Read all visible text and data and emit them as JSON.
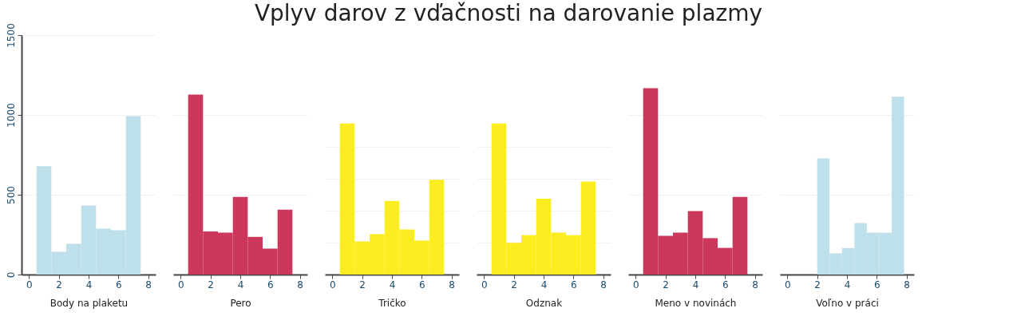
{
  "chart_data": [
    {
      "type": "other",
      "title": "Vplyv darov z vďačnosti na darovanie plazmy"
    },
    {
      "type": "histogram",
      "xlabel": "Body na plaketu",
      "bins": [
        0.5,
        1.5,
        2.5,
        3.5,
        4.5,
        5.5,
        6.5,
        7.5
      ],
      "values": [
        679,
        143,
        193,
        433,
        287,
        278,
        992
      ],
      "color": "#bde0ea",
      "xlim": [
        -0.5,
        8.5
      ],
      "xticks": [
        0,
        2,
        4,
        6,
        8
      ],
      "ylim": [
        0,
        1500
      ],
      "yticks": [
        0,
        500,
        1000,
        1500
      ],
      "grid": "y"
    },
    {
      "type": "histogram",
      "xlabel": "Pero",
      "bins": [
        0.5,
        1.5,
        2.5,
        3.5,
        4.5,
        5.5,
        6.5,
        7.5
      ],
      "values": [
        1128,
        270,
        262,
        486,
        236,
        162,
        406
      ],
      "color": "#cc375c",
      "xlim": [
        -0.5,
        8.5
      ],
      "xticks": [
        0,
        2,
        4,
        6,
        8
      ],
      "ylim": [
        0,
        1500
      ],
      "yticks": [
        {
          "value": 500,
          "label": null
        },
        {
          "value": 1000,
          "label": null
        }
      ],
      "grid": "y",
      "tick_labels": "x"
    },
    {
      "type": "histogram",
      "xlabel": "Tričko",
      "bins": [
        0.5,
        1.5,
        2.5,
        3.5,
        4.5,
        5.5,
        6.5,
        7.5
      ],
      "values": [
        946,
        208,
        253,
        461,
        282,
        213,
        594
      ],
      "color": "#fced21",
      "xlim": [
        -0.5,
        8.5
      ],
      "xticks": [
        0,
        2,
        4,
        6,
        8
      ],
      "ylim": [
        0,
        1500
      ],
      "yticks": [
        {
          "value": 200,
          "label": null
        },
        {
          "value": 400,
          "label": null
        },
        {
          "value": 600,
          "label": null
        },
        {
          "value": 800,
          "label": null
        }
      ],
      "grid": "y",
      "tick_labels": "x"
    },
    {
      "type": "histogram",
      "xlabel": "Odznak",
      "bins": [
        0.5,
        1.5,
        2.5,
        3.5,
        4.5,
        5.5,
        6.5,
        7.5
      ],
      "values": [
        946,
        199,
        247,
        475,
        262,
        247,
        583
      ],
      "color": "#fced21",
      "xlim": [
        -0.5,
        8.5
      ],
      "xticks": [
        0,
        2,
        4,
        6,
        8
      ],
      "ylim": [
        0,
        1500
      ],
      "yticks": [
        {
          "value": 200,
          "label": null
        },
        {
          "value": 400,
          "label": null
        },
        {
          "value": 600,
          "label": null
        },
        {
          "value": 800,
          "label": null
        }
      ],
      "grid": "y",
      "tick_labels": "x"
    },
    {
      "type": "histogram",
      "xlabel": "Meno v novinách",
      "bins": [
        0.5,
        1.5,
        2.5,
        3.5,
        4.5,
        5.5,
        6.5,
        7.5
      ],
      "values": [
        1168,
        242,
        262,
        398,
        228,
        167,
        486
      ],
      "color": "#cc375c",
      "xlim": [
        -0.5,
        8.5
      ],
      "xticks": [
        0,
        2,
        4,
        6,
        8
      ],
      "ylim": [
        0,
        1500
      ],
      "yticks": [
        {
          "value": 500,
          "label": null
        },
        {
          "value": 1000,
          "label": null
        }
      ],
      "grid": "y",
      "tick_labels": "x"
    },
    {
      "type": "histogram",
      "xlabel": "Voľno v práci",
      "bins": [
        2,
        2.83,
        3.67,
        4.5,
        5.33,
        6.17,
        7,
        7.83
      ],
      "values": [
        727,
        133,
        166,
        322,
        262,
        262,
        1114
      ],
      "color": "#bde0ea",
      "xlim": [
        -0.5,
        8.5
      ],
      "xticks": [
        0,
        2,
        4,
        6,
        8
      ],
      "ylim": [
        0,
        1500
      ],
      "yticks": [
        {
          "value": 500,
          "label": null
        },
        {
          "value": 1000,
          "label": null
        }
      ],
      "grid": "y",
      "tick_labels": "x"
    }
  ]
}
